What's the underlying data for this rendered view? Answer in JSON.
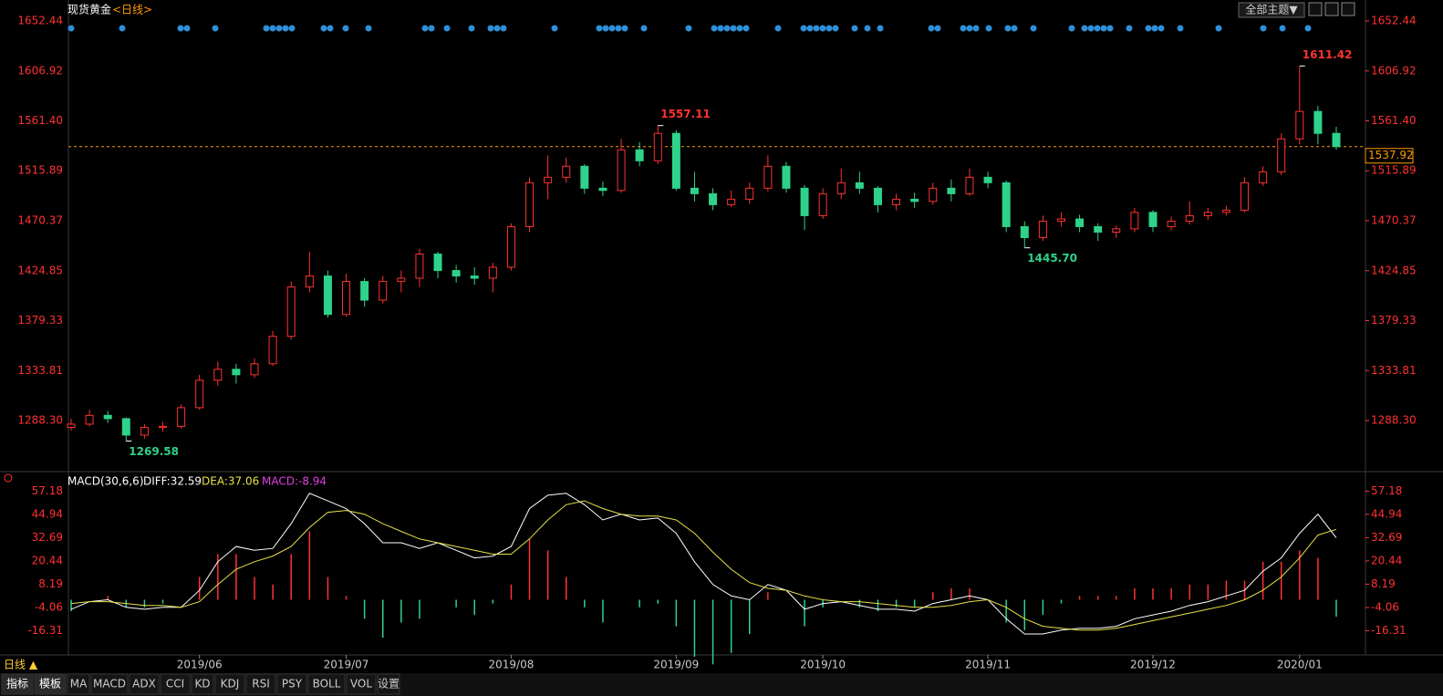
{
  "header": {
    "title": "现货黄金",
    "period": "<日线>",
    "theme_button": "全部主题▼"
  },
  "chart_data": {
    "type": "candlestick",
    "categories": [
      null,
      null,
      null,
      null,
      null,
      null,
      null,
      "2019/06",
      null,
      null,
      null,
      null,
      null,
      null,
      null,
      "2019/07",
      null,
      null,
      null,
      null,
      null,
      null,
      null,
      null,
      "2019/08",
      null,
      null,
      null,
      null,
      null,
      null,
      null,
      null,
      "2019/09",
      null,
      null,
      null,
      null,
      null,
      null,
      null,
      "2019/10",
      null,
      null,
      null,
      null,
      null,
      null,
      null,
      null,
      "2019/11",
      null,
      null,
      null,
      null,
      null,
      null,
      null,
      null,
      "2019/12",
      null,
      null,
      null,
      null,
      null,
      null,
      null,
      "2020/01",
      null,
      null
    ],
    "ohlc": [
      [
        1282,
        1290,
        1279,
        1285
      ],
      [
        1285,
        1298,
        1283,
        1293
      ],
      [
        1293,
        1297,
        1286,
        1290
      ],
      [
        1290,
        1291,
        1269.58,
        1275
      ],
      [
        1275,
        1285,
        1272,
        1282
      ],
      [
        1282,
        1287,
        1278,
        1283
      ],
      [
        1283,
        1303,
        1281,
        1300
      ],
      [
        1300,
        1330,
        1298,
        1325
      ],
      [
        1325,
        1342,
        1320,
        1335
      ],
      [
        1335,
        1340,
        1322,
        1330
      ],
      [
        1330,
        1345,
        1327,
        1340
      ],
      [
        1340,
        1370,
        1338,
        1365
      ],
      [
        1365,
        1415,
        1362,
        1410
      ],
      [
        1410,
        1442,
        1405,
        1420
      ],
      [
        1420,
        1425,
        1382,
        1385
      ],
      [
        1385,
        1422,
        1383,
        1415
      ],
      [
        1415,
        1418,
        1392,
        1398
      ],
      [
        1398,
        1420,
        1395,
        1415
      ],
      [
        1415,
        1425,
        1405,
        1418
      ],
      [
        1418,
        1445,
        1410,
        1440
      ],
      [
        1440,
        1442,
        1418,
        1425
      ],
      [
        1425,
        1430,
        1414,
        1420
      ],
      [
        1420,
        1428,
        1412,
        1418
      ],
      [
        1418,
        1432,
        1405,
        1428
      ],
      [
        1428,
        1468,
        1425,
        1465
      ],
      [
        1465,
        1510,
        1460,
        1505
      ],
      [
        1505,
        1530,
        1490,
        1510
      ],
      [
        1510,
        1528,
        1505,
        1520
      ],
      [
        1520,
        1522,
        1495,
        1500
      ],
      [
        1500,
        1506,
        1493,
        1498
      ],
      [
        1498,
        1545,
        1496,
        1535
      ],
      [
        1535,
        1542,
        1520,
        1525
      ],
      [
        1525,
        1557.11,
        1522,
        1550
      ],
      [
        1550,
        1553,
        1498,
        1500
      ],
      [
        1500,
        1515,
        1488,
        1495
      ],
      [
        1495,
        1500,
        1480,
        1485
      ],
      [
        1485,
        1498,
        1483,
        1490
      ],
      [
        1490,
        1505,
        1486,
        1500
      ],
      [
        1500,
        1530,
        1497,
        1520
      ],
      [
        1520,
        1524,
        1496,
        1500
      ],
      [
        1500,
        1503,
        1462,
        1475
      ],
      [
        1475,
        1500,
        1472,
        1495
      ],
      [
        1495,
        1518,
        1490,
        1505
      ],
      [
        1505,
        1515,
        1495,
        1500
      ],
      [
        1500,
        1502,
        1478,
        1485
      ],
      [
        1485,
        1495,
        1480,
        1490
      ],
      [
        1490,
        1496,
        1482,
        1488
      ],
      [
        1488,
        1505,
        1485,
        1500
      ],
      [
        1500,
        1508,
        1488,
        1495
      ],
      [
        1495,
        1518,
        1493,
        1510
      ],
      [
        1510,
        1515,
        1500,
        1505
      ],
      [
        1505,
        1507,
        1460,
        1465
      ],
      [
        1465,
        1470,
        1445.7,
        1455
      ],
      [
        1455,
        1475,
        1452,
        1470
      ],
      [
        1470,
        1478,
        1465,
        1472
      ],
      [
        1472,
        1476,
        1460,
        1465
      ],
      [
        1465,
        1468,
        1452,
        1460
      ],
      [
        1460,
        1466,
        1455,
        1463
      ],
      [
        1463,
        1482,
        1460,
        1478
      ],
      [
        1478,
        1480,
        1460,
        1465
      ],
      [
        1465,
        1474,
        1462,
        1470
      ],
      [
        1470,
        1488,
        1467,
        1475
      ],
      [
        1475,
        1482,
        1471,
        1478
      ],
      [
        1478,
        1484,
        1475,
        1480
      ],
      [
        1480,
        1510,
        1478,
        1505
      ],
      [
        1505,
        1520,
        1502,
        1515
      ],
      [
        1515,
        1550,
        1512,
        1545
      ],
      [
        1545,
        1611.42,
        1540,
        1570
      ],
      [
        1570,
        1575,
        1540,
        1550
      ],
      [
        1550,
        1556,
        1535,
        1537.92
      ]
    ],
    "up_color": "#ff3232",
    "down_color": "#2fd28a",
    "ylim": [
      1247.56,
      1659.09
    ],
    "yticks": [
      {
        "value": 1288.3,
        "label": "1288.30"
      },
      1333.81,
      1379.33,
      1424.85,
      {
        "value": 1470.37,
        "label": "1470.37"
      },
      1515.89,
      {
        "value": 1561.4,
        "label": "1561.40"
      },
      1606.92,
      1652.44
    ],
    "annotations": [
      {
        "value": 1557.11,
        "label": "1557.11"
      },
      {
        "value": 1611.42,
        "label": "1611.42"
      },
      {
        "value": 1445.7,
        "label": "1445.70"
      },
      {
        "value": 1269.58,
        "label": "1269.58"
      }
    ],
    "last_price": {
      "value": 1537.92,
      "label": "1537.92"
    },
    "indicator": {
      "title": "MACD(30,6,6)",
      "diff_label": "DIFF:32.59",
      "dea_label": "DEA:37.06",
      "macd_label": "MACD:-8.94",
      "diff": [
        -5,
        -1,
        0,
        -4,
        -5,
        -4,
        -4,
        5,
        20,
        28,
        26,
        27,
        40,
        56,
        52,
        48,
        40,
        30,
        30,
        27,
        30,
        26,
        22,
        23,
        28,
        48,
        55,
        56,
        50,
        42,
        45,
        42,
        43,
        35,
        20,
        8,
        2,
        0,
        8,
        5,
        -5,
        -2,
        -1,
        -3,
        -5,
        -5,
        -6,
        -2,
        0,
        2,
        0,
        -10,
        -18,
        -18,
        -16,
        -15,
        -15,
        -14,
        -10,
        -8,
        -6,
        -3,
        -1,
        2,
        5,
        15,
        22,
        35,
        45,
        32.59
      ],
      "dea": [
        -2,
        -1,
        -1,
        -2,
        -3,
        -3,
        -4,
        -1,
        8,
        16,
        20,
        23,
        28,
        38,
        46,
        47,
        45,
        40,
        36,
        32,
        30,
        28,
        26,
        24,
        24,
        32,
        42,
        50,
        52,
        48,
        45,
        44,
        44,
        42,
        35,
        25,
        16,
        9,
        6,
        5,
        2,
        0,
        -1,
        -1,
        -2,
        -3,
        -4,
        -4,
        -3,
        -1,
        0,
        -4,
        -10,
        -14,
        -15,
        -16,
        -16,
        -15,
        -13,
        -11,
        -9,
        -7,
        -5,
        -3,
        0,
        5,
        12,
        22,
        34,
        37.06
      ],
      "macd": [
        -6,
        0,
        2,
        -4,
        -4,
        -2,
        0,
        12,
        24,
        24,
        12,
        8,
        24,
        36,
        12,
        2,
        -10,
        -20,
        -12,
        -10,
        0,
        -4,
        -8,
        -2,
        8,
        32,
        26,
        12,
        -4,
        -12,
        0,
        -4,
        -2,
        -14,
        -30,
        -34,
        -28,
        -18,
        4,
        0,
        -14,
        -4,
        0,
        -4,
        -6,
        -4,
        -4,
        4,
        6,
        6,
        0,
        -12,
        -16,
        -8,
        -2,
        2,
        2,
        2,
        6,
        6,
        6,
        8,
        8,
        10,
        10,
        20,
        20,
        26,
        22,
        -8.94
      ],
      "diff_color": "#ffffff",
      "dea_color": "#e8e04a",
      "ylim": [
        -29.05,
        65.99
      ],
      "yticks": [
        -16.31,
        -4.06,
        8.19,
        20.44,
        32.69,
        44.94,
        57.18
      ]
    }
  },
  "footer": {
    "period_tab": "日线 ▲",
    "tabs": [
      "指标",
      "模板",
      "MA",
      "MACD",
      "ADX",
      "CCI",
      "KD",
      "KDJ",
      "RSI",
      "PSY",
      "BOLL",
      "VOL",
      "设置"
    ]
  }
}
